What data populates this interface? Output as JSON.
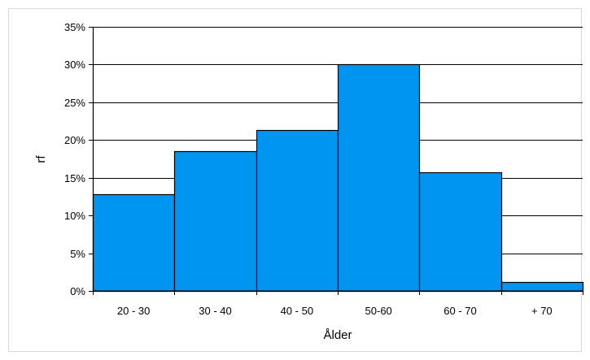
{
  "chart_data": {
    "type": "bar",
    "title": "",
    "xlabel": "Ålder",
    "ylabel": "rf",
    "categories": [
      "20 - 30",
      "30 - 40",
      "40 - 50",
      "50-60",
      "60 - 70",
      "+ 70"
    ],
    "values": [
      0.128,
      0.185,
      0.213,
      0.3,
      0.157,
      0.012
    ],
    "ylim": [
      0,
      0.35
    ],
    "yticks": [
      0,
      0.05,
      0.1,
      0.15,
      0.2,
      0.25,
      0.3,
      0.35
    ],
    "ytick_labels": [
      "0%",
      "5%",
      "10%",
      "15%",
      "20%",
      "25%",
      "30%",
      "35%"
    ],
    "grid": true,
    "bar_gap": 0,
    "colors": {
      "bar_fill": "#0095f0",
      "bar_stroke": "#000000",
      "gridline": "#000000",
      "axis": "#000000"
    }
  }
}
